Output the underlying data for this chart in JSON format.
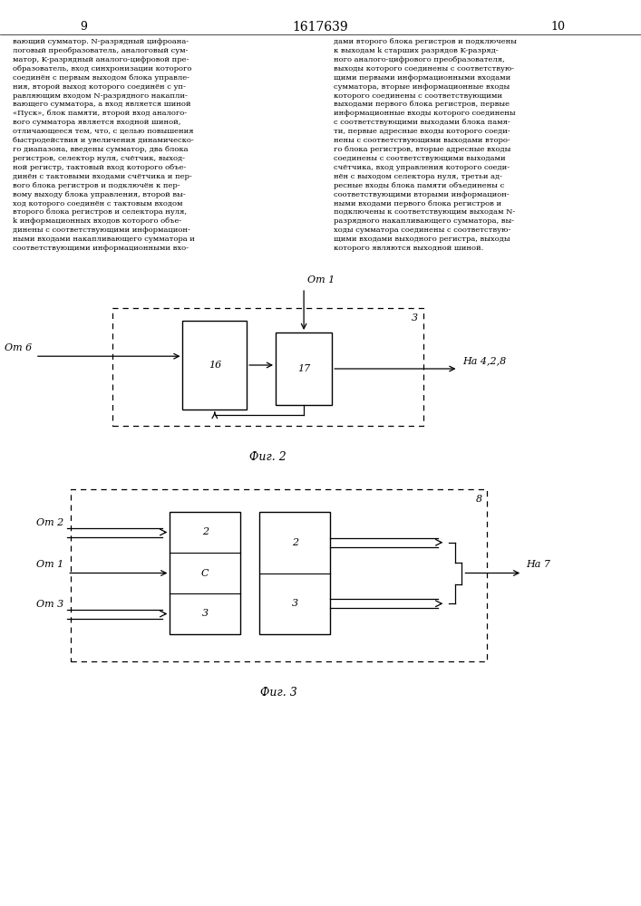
{
  "title": "1617639",
  "page_left": "9",
  "page_right": "10",
  "bg_color": "#ffffff",
  "text_color": "#000000",
  "left_col": "вающий сумматор. N-разрядный цифроана-\nлоговый преобразователь, аналоговый сум-\nматор, K-разрядный аналого-цифровой пре-\nобразователь, вход синхронизации которого\nсоединён с первым выходом блока управле-\nния, второй выход которого соединён с уп-\nравляющим входом N-разрядного накапли-\nвающего сумматора, а вход является шиной\n«Пуск», блок памяти, второй вход аналого-\nвого сумматора является входной шиной,\nотличающееся тем, что, с целью повышения\nбыстродействия и увеличения динамическо-\nго диапазона, введены сумматор, два блока\nрегистров, селектор нуля, счётчик, выход-\nной регистр, тактовый вход которого объе-\nдинён с тактовыми входами счётчика и пер-\nвого блока регистров и подключён к пер-\nвому выходу блока управления, второй вы-\nход которого соединён с тактовым входом\nвторого блока регистров и селектора нуля,\nk информационных входов которого объе-\nдинены с соответствующими информацион-\nными входами накапливающего сумматора и\nсоответствующими информационными вхо-",
  "right_col": "дами второго блока регистров и подключены\nк выходам k старших разрядов K-разряд-\nного аналого-цифрового преобразователя,\nвыходы которого соединены с соответствую-\nщими первыми информационными входами\nсумматора, вторые информационные входы\nкоторого соединены с соответствующими\nвыходами первого блока регистров, первые\nинформационные входы которого соединены\nс соответствующими выходами блока памя-\nти, первые адресные входы которого соеди-\nнены с соответствующими выходами второ-\nго блока регистров, вторые адресные входы\nсоединены с соответствующими выходами\nсчётчика, вход управления которого соеди-\nнён с выходом селектора нуля, третьи ад-\nресные входы блока памяти объединены с\nсоответствующими вторыми информацион-\nными входами первого блока регистров и\nподключены к соответствующим выходам N-\nразрядного накапливающего сумматора, вы-\nходы сумматора соединены с соответствую-\nщими входами выходного регистра, выходы\nкоторого являются выходной шиной.",
  "fig2_caption": "Фиг. 2",
  "fig3_caption": "Фиг. 3",
  "label3": "3",
  "label8": "8",
  "label16": "16",
  "label17": "17",
  "label_ot1_fig2": "От 1",
  "label_ot6": "От 6",
  "label_na428": "На 4,2,8",
  "label_ot2": "От 2",
  "label_ot1_fig3": "От 1",
  "label_ot3": "От 3",
  "label_na7": "На 7",
  "label2a": "2",
  "label2b": "2",
  "labelC": "C",
  "label3a": "3",
  "label3b": "3"
}
